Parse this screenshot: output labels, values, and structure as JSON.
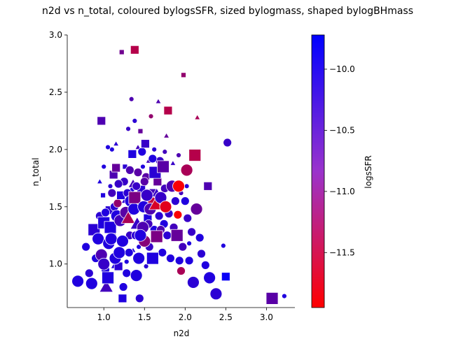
{
  "chart_data": {
    "type": "scatter",
    "title": "n2d vs n_total, coloured bylogsSFR, sized bylogmass, shaped bylogBHmass",
    "xlabel": "n2d",
    "ylabel": "n_total",
    "colorbar_label": "logsSFR",
    "xlim": [
      0.55,
      3.35
    ],
    "ylim": [
      0.62,
      3.0
    ],
    "xticks": [
      "1.0",
      "1.5",
      "2.0",
      "2.5",
      "3.0"
    ],
    "xtick_values": [
      1.0,
      1.5,
      2.0,
      2.5,
      3.0
    ],
    "yticks": [
      "1.0",
      "1.5",
      "2.0",
      "2.5",
      "3.0"
    ],
    "ytick_values": [
      1.0,
      1.5,
      2.0,
      2.5,
      3.0
    ],
    "colorbar": {
      "range": [
        -11.95,
        -9.72
      ],
      "ticks": [
        "−10.0",
        "−10.5",
        "−11.0",
        "−11.5"
      ],
      "tick_values": [
        -10.0,
        -10.5,
        -11.0,
        -11.5
      ],
      "color_low": "#ff0000",
      "color_high": "#0000ff"
    },
    "grid": false,
    "legend": "none",
    "points": [
      [
        0.68,
        0.85,
        -10.0,
        "o",
        "l"
      ],
      [
        0.78,
        1.15,
        -10.0,
        "o",
        "m"
      ],
      [
        0.82,
        0.92,
        -10.1,
        "o",
        "m"
      ],
      [
        0.85,
        0.83,
        -10.0,
        "o",
        "l"
      ],
      [
        0.88,
        1.3,
        -10.1,
        "s",
        "l"
      ],
      [
        0.9,
        1.05,
        -10.0,
        "o",
        "m"
      ],
      [
        0.93,
        1.22,
        -10.0,
        "o",
        "l"
      ],
      [
        0.95,
        1.42,
        -10.1,
        "o",
        "m"
      ],
      [
        0.97,
        1.08,
        -10.4,
        "o",
        "l"
      ],
      [
        0.97,
        2.25,
        -10.4,
        "s",
        "m"
      ],
      [
        0.99,
        1.6,
        -10.0,
        "s",
        "s"
      ],
      [
        1.0,
        1.36,
        -10.0,
        "s",
        "l"
      ],
      [
        1.0,
        1.0,
        -10.2,
        "o",
        "l"
      ],
      [
        1.02,
        0.95,
        -10.0,
        "o",
        "m"
      ],
      [
        1.03,
        0.8,
        -10.3,
        "^",
        "l"
      ],
      [
        1.05,
        0.88,
        -10.0,
        "s",
        "l"
      ],
      [
        1.06,
        1.18,
        -10.0,
        "o",
        "l"
      ],
      [
        1.07,
        1.47,
        -10.1,
        "s",
        "m"
      ],
      [
        1.08,
        1.32,
        -10.0,
        "s",
        "l"
      ],
      [
        1.09,
        1.22,
        -10.0,
        "o",
        "l"
      ],
      [
        1.1,
        2.0,
        -10.0,
        "o",
        "s"
      ],
      [
        1.1,
        1.28,
        -10.2,
        "^",
        "m"
      ],
      [
        1.12,
        1.78,
        -10.4,
        "s",
        "m"
      ],
      [
        1.13,
        1.5,
        -10.1,
        "o",
        "m"
      ],
      [
        1.14,
        1.05,
        -10.0,
        "o",
        "l"
      ],
      [
        1.15,
        1.84,
        -10.6,
        "s",
        "m"
      ],
      [
        1.16,
        1.42,
        -10.0,
        "o",
        "l"
      ],
      [
        1.17,
        1.53,
        -11.0,
        "o",
        "m"
      ],
      [
        1.18,
        0.98,
        -10.1,
        "s",
        "m"
      ],
      [
        1.19,
        1.1,
        -10.0,
        "o",
        "l"
      ],
      [
        1.2,
        1.38,
        -10.3,
        "o",
        "l"
      ],
      [
        1.21,
        1.6,
        -10.0,
        "s",
        "m"
      ],
      [
        1.22,
        2.85,
        -10.7,
        "s",
        "s"
      ],
      [
        1.23,
        0.7,
        -10.0,
        "s",
        "m"
      ],
      [
        1.23,
        1.2,
        -10.0,
        "o",
        "l"
      ],
      [
        1.24,
        0.8,
        -10.0,
        "o",
        "m"
      ],
      [
        1.25,
        1.72,
        -10.2,
        "o",
        "m"
      ],
      [
        1.26,
        1.85,
        -10.1,
        "s",
        "s"
      ],
      [
        1.27,
        1.45,
        -10.5,
        "o",
        "l"
      ],
      [
        1.28,
        0.92,
        -10.0,
        "o",
        "m"
      ],
      [
        1.29,
        1.62,
        -10.1,
        "o",
        "m"
      ],
      [
        1.3,
        1.4,
        -11.2,
        "^",
        "l"
      ],
      [
        1.31,
        1.1,
        -10.0,
        "o",
        "m"
      ],
      [
        1.32,
        1.25,
        -10.2,
        "o",
        "m"
      ],
      [
        1.33,
        1.55,
        -10.0,
        "o",
        "l"
      ],
      [
        1.34,
        2.44,
        -10.4,
        "o",
        "s"
      ],
      [
        1.35,
        1.96,
        -10.0,
        "s",
        "m"
      ],
      [
        1.36,
        1.7,
        -10.3,
        "^",
        "m"
      ],
      [
        1.37,
        1.48,
        -10.0,
        "o",
        "l"
      ],
      [
        1.38,
        2.87,
        -11.3,
        "s",
        "m"
      ],
      [
        1.38,
        1.58,
        -10.8,
        "s",
        "l"
      ],
      [
        1.39,
        1.25,
        -10.1,
        "o",
        "m"
      ],
      [
        1.4,
        0.9,
        -10.0,
        "o",
        "l"
      ],
      [
        1.41,
        1.35,
        -10.2,
        "^",
        "l"
      ],
      [
        1.42,
        1.8,
        -10.5,
        "o",
        "m"
      ],
      [
        1.43,
        1.05,
        -10.0,
        "o",
        "l"
      ],
      [
        1.44,
        0.7,
        -10.1,
        "o",
        "m"
      ],
      [
        1.45,
        2.16,
        -10.6,
        "s",
        "s"
      ],
      [
        1.46,
        1.65,
        -10.1,
        "s",
        "m"
      ],
      [
        1.47,
        1.98,
        -10.0,
        "o",
        "m"
      ],
      [
        1.48,
        1.32,
        -10.4,
        "o",
        "l"
      ],
      [
        1.49,
        1.5,
        -10.0,
        "o",
        "l"
      ],
      [
        1.5,
        1.2,
        -10.9,
        "o",
        "l"
      ],
      [
        1.51,
        2.05,
        -10.2,
        "s",
        "m"
      ],
      [
        1.52,
        1.76,
        -10.5,
        "o",
        "m"
      ],
      [
        1.53,
        1.6,
        -10.2,
        "o",
        "l"
      ],
      [
        1.54,
        1.4,
        -10.0,
        "s",
        "m"
      ],
      [
        1.55,
        1.9,
        -10.3,
        "^",
        "s"
      ],
      [
        1.56,
        1.15,
        -10.2,
        "o",
        "m"
      ],
      [
        1.57,
        1.48,
        -10.4,
        "o",
        "l"
      ],
      [
        1.58,
        2.29,
        -11.0,
        "o",
        "s"
      ],
      [
        1.59,
        1.55,
        -11.4,
        "o",
        "m"
      ],
      [
        1.6,
        1.05,
        -10.0,
        "s",
        "l"
      ],
      [
        1.61,
        1.62,
        -10.3,
        "s",
        "m"
      ],
      [
        1.62,
        1.3,
        -10.0,
        "o",
        "m"
      ],
      [
        1.63,
        1.8,
        -10.1,
        "s",
        "l"
      ],
      [
        1.64,
        1.52,
        -11.6,
        "^",
        "l"
      ],
      [
        1.65,
        1.24,
        -10.8,
        "s",
        "l"
      ],
      [
        1.66,
        1.72,
        -10.6,
        "s",
        "m"
      ],
      [
        1.67,
        2.42,
        -10.4,
        "^",
        "s"
      ],
      [
        1.68,
        1.42,
        -10.1,
        "o",
        "m"
      ],
      [
        1.69,
        1.9,
        -10.2,
        "o",
        "m"
      ],
      [
        1.7,
        1.58,
        -10.2,
        "o",
        "l"
      ],
      [
        1.72,
        1.1,
        -10.0,
        "o",
        "m"
      ],
      [
        1.73,
        1.85,
        -10.5,
        "s",
        "l"
      ],
      [
        1.74,
        1.35,
        -10.0,
        "o",
        "m"
      ],
      [
        1.75,
        1.66,
        -10.3,
        "o",
        "m"
      ],
      [
        1.76,
        1.5,
        -11.7,
        "o",
        "l"
      ],
      [
        1.77,
        2.12,
        -10.6,
        "^",
        "s"
      ],
      [
        1.78,
        1.25,
        -10.1,
        "o",
        "m"
      ],
      [
        1.79,
        2.34,
        -11.3,
        "s",
        "m"
      ],
      [
        1.8,
        1.44,
        -10.2,
        "o",
        "m"
      ],
      [
        1.82,
        1.05,
        -10.0,
        "o",
        "m"
      ],
      [
        1.84,
        1.68,
        -10.4,
        "o",
        "l"
      ],
      [
        1.86,
        1.32,
        -10.3,
        "o",
        "m"
      ],
      [
        1.88,
        1.55,
        -10.1,
        "o",
        "m"
      ],
      [
        1.9,
        1.25,
        -10.6,
        "s",
        "l"
      ],
      [
        1.91,
        1.43,
        -11.9,
        "o",
        "m"
      ],
      [
        1.92,
        1.68,
        -11.9,
        "o",
        "l"
      ],
      [
        1.93,
        1.03,
        -10.0,
        "o",
        "m"
      ],
      [
        1.95,
        0.94,
        -11.2,
        "o",
        "m"
      ],
      [
        1.97,
        1.15,
        -10.3,
        "o",
        "m"
      ],
      [
        1.98,
        2.65,
        -11.0,
        "s",
        "s"
      ],
      [
        2.0,
        1.55,
        -10.0,
        "o",
        "m"
      ],
      [
        2.02,
        1.82,
        -11.2,
        "o",
        "l"
      ],
      [
        2.03,
        1.4,
        -10.2,
        "o",
        "m"
      ],
      [
        2.05,
        1.03,
        -10.0,
        "o",
        "m"
      ],
      [
        2.08,
        1.28,
        -10.2,
        "o",
        "m"
      ],
      [
        2.1,
        0.84,
        -10.1,
        "o",
        "l"
      ],
      [
        2.12,
        1.95,
        -11.3,
        "s",
        "l"
      ],
      [
        2.14,
        1.48,
        -10.6,
        "o",
        "l"
      ],
      [
        2.15,
        2.28,
        -11.2,
        "^",
        "s"
      ],
      [
        2.18,
        1.23,
        -10.0,
        "o",
        "m"
      ],
      [
        2.2,
        1.09,
        -10.1,
        "o",
        "m"
      ],
      [
        2.25,
        0.99,
        -10.0,
        "o",
        "m"
      ],
      [
        2.28,
        1.68,
        -10.4,
        "s",
        "m"
      ],
      [
        2.3,
        0.88,
        -10.0,
        "o",
        "l"
      ],
      [
        2.38,
        0.74,
        -10.1,
        "o",
        "l"
      ],
      [
        2.47,
        1.16,
        -10.0,
        "o",
        "s"
      ],
      [
        2.5,
        0.89,
        -9.8,
        "s",
        "m"
      ],
      [
        2.52,
        2.06,
        -10.2,
        "o",
        "m"
      ],
      [
        3.07,
        0.7,
        -10.5,
        "s",
        "l"
      ],
      [
        3.22,
        0.72,
        -10.0,
        "o",
        "s"
      ],
      [
        1.02,
        1.45,
        -10.0,
        "o",
        "m"
      ],
      [
        1.1,
        1.62,
        -10.3,
        "o",
        "m"
      ],
      [
        1.18,
        1.7,
        -10.2,
        "o",
        "m"
      ],
      [
        1.25,
        1.55,
        -10.1,
        "^",
        "s"
      ],
      [
        1.32,
        1.82,
        -10.4,
        "o",
        "m"
      ],
      [
        1.4,
        1.68,
        -10.2,
        "o",
        "m"
      ],
      [
        1.45,
        1.25,
        -10.0,
        "o",
        "l"
      ],
      [
        1.5,
        1.72,
        -10.5,
        "o",
        "m"
      ],
      [
        1.55,
        1.35,
        -10.3,
        "o",
        "m"
      ],
      [
        1.6,
        1.92,
        -10.0,
        "o",
        "m"
      ],
      [
        1.65,
        1.62,
        -10.2,
        "^",
        "m"
      ],
      [
        1.7,
        1.3,
        -10.4,
        "o",
        "m"
      ],
      [
        1.12,
        0.98,
        -10.0,
        "^",
        "s"
      ],
      [
        1.2,
        1.12,
        -10.1,
        "o",
        "s"
      ],
      [
        1.28,
        1.02,
        -10.0,
        "o",
        "s"
      ],
      [
        1.36,
        1.12,
        -10.0,
        "^",
        "s"
      ],
      [
        1.43,
        1.15,
        -10.0,
        "o",
        "s"
      ],
      [
        1.52,
        0.98,
        -10.1,
        "o",
        "s"
      ],
      [
        1.05,
        2.02,
        -10.0,
        "o",
        "s"
      ],
      [
        1.15,
        2.05,
        -10.1,
        "^",
        "s"
      ],
      [
        1.3,
        2.18,
        -10.2,
        "o",
        "s"
      ],
      [
        1.38,
        2.25,
        -10.1,
        "o",
        "s"
      ],
      [
        1.42,
        2.02,
        -10.3,
        "^",
        "s"
      ],
      [
        1.48,
        1.85,
        -10.0,
        "o",
        "s"
      ],
      [
        0.95,
        1.72,
        -10.0,
        "^",
        "s"
      ],
      [
        1.0,
        1.85,
        -10.0,
        "o",
        "s"
      ],
      [
        1.08,
        1.68,
        -10.1,
        "o",
        "s"
      ],
      [
        1.35,
        1.65,
        -10.0,
        "o",
        "s"
      ],
      [
        1.58,
        1.78,
        -10.2,
        "o",
        "s"
      ],
      [
        1.62,
        2.0,
        -10.1,
        "o",
        "s"
      ],
      [
        1.75,
        1.98,
        -10.3,
        "o",
        "s"
      ],
      [
        1.85,
        1.88,
        -10.2,
        "^",
        "s"
      ],
      [
        1.95,
        1.62,
        -10.3,
        "o",
        "s"
      ],
      [
        2.02,
        1.68,
        -10.1,
        "o",
        "s"
      ],
      [
        1.92,
        1.95,
        -10.4,
        "o",
        "s"
      ],
      [
        2.05,
        1.18,
        -10.0,
        "o",
        "s"
      ]
    ]
  }
}
